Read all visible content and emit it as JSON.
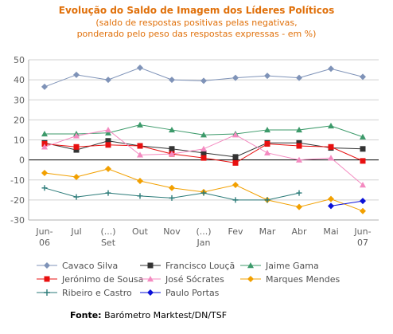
{
  "chart_data": {
    "type": "line",
    "title": "Evolução do Saldo  de Imagem dos Líderes Políticos",
    "subtitle_lines": [
      "(saldo de respostas positivas pelas negativas,",
      "ponderado pelo peso das respostas expressas - em %)"
    ],
    "categories": [
      [
        "Jun-",
        "06"
      ],
      [
        "Jul"
      ],
      [
        "(...)",
        "Set"
      ],
      [
        "Out"
      ],
      [
        "Nov"
      ],
      [
        "(...)",
        "Jan"
      ],
      [
        "Fev"
      ],
      [
        "Mar"
      ],
      [
        "Abr"
      ],
      [
        "Mai"
      ],
      [
        "Jun-",
        "07"
      ]
    ],
    "ylim": [
      -30,
      50
    ],
    "yticks": [
      -30,
      -20,
      -10,
      0,
      10,
      20,
      30,
      40,
      50
    ],
    "grid": true,
    "legend_position": "bottom",
    "series": [
      {
        "name": "Cavaco Silva",
        "color": "#7f93b8",
        "marker": "diamond",
        "values": [
          36.5,
          42.5,
          40,
          46,
          40,
          39.5,
          41,
          42,
          41,
          45.5,
          41.5
        ]
      },
      {
        "name": "Francisco Louçã",
        "color": "#333333",
        "marker": "square",
        "values": [
          8.5,
          5,
          9.5,
          7,
          5.5,
          3.5,
          1.5,
          8.5,
          8.5,
          6,
          5.5
        ]
      },
      {
        "name": "Jaime Gama",
        "color": "#3c9a6a",
        "marker": "triangle",
        "values": [
          13,
          13,
          13.5,
          17.5,
          15,
          12.5,
          13,
          15,
          15,
          17,
          11.5
        ]
      },
      {
        "name": "Jerónimo de Sousa",
        "color": "#e81010",
        "marker": "square",
        "values": [
          8,
          6.5,
          7.5,
          7,
          3,
          1,
          -1.5,
          8,
          7,
          6.5,
          -0.5
        ]
      },
      {
        "name": "José Sócrates",
        "color": "#f48ac0",
        "marker": "triangle",
        "values": [
          6.5,
          12,
          15,
          2.5,
          3,
          5.5,
          12.5,
          3.5,
          0,
          1,
          -12.5
        ]
      },
      {
        "name": "Marques Mendes",
        "color": "#f2a000",
        "marker": "diamond",
        "values": [
          -6.5,
          -8.5,
          -4.5,
          -10.5,
          -14,
          -16,
          -12.5,
          -20,
          -23.5,
          -19.5,
          -25.5
        ]
      },
      {
        "name": "Ribeiro e Castro",
        "color": "#2a7a78",
        "marker": "plus",
        "values": [
          -14,
          -18.5,
          -16.5,
          -18,
          -19,
          -16.5,
          -20,
          -20,
          -16.5,
          null,
          null
        ]
      },
      {
        "name": "Paulo Portas",
        "color": "#0a10d8",
        "marker": "diamond",
        "values": [
          null,
          null,
          null,
          null,
          null,
          null,
          null,
          null,
          null,
          -23,
          -20.5
        ]
      }
    ]
  },
  "footer": {
    "source_label": "Fonte:",
    "source_text": "Barómetro Marktest/DN/TSF"
  }
}
